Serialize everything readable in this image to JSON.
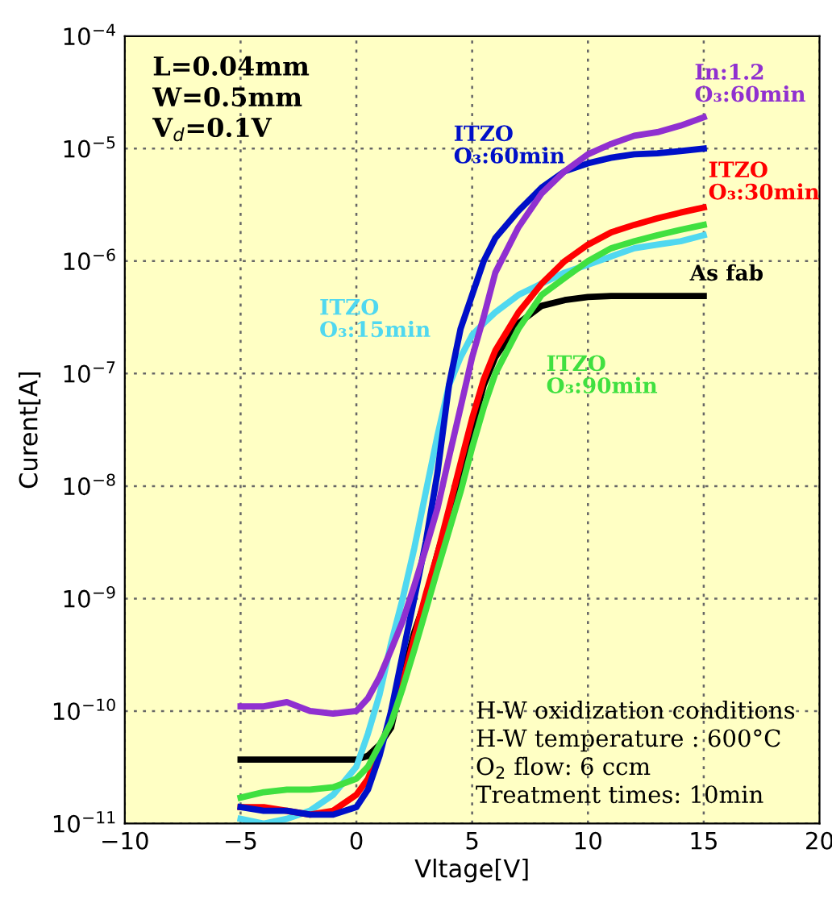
{
  "chart_data": {
    "type": "line",
    "xlabel": "Vltage[V]",
    "ylabel": "Curent[A]",
    "log": "y",
    "grid": true,
    "legend": false,
    "marker": "none",
    "line_style": "solid",
    "xlim": [
      -10,
      20
    ],
    "xticks": [
      {
        "value": -10,
        "label": "−10"
      },
      {
        "value": -5,
        "label": "−5"
      },
      0,
      5,
      10,
      15,
      20
    ],
    "ylim": [
      1e-11,
      0.0001
    ],
    "yticks": [
      {
        "value": 1e-11,
        "label": "10$^{−11}$"
      },
      {
        "value": 1e-10,
        "label": "10$^{−10}$"
      },
      {
        "value": 1e-09,
        "label": "10$^{−9}$"
      },
      {
        "value": 1e-08,
        "label": "10$^{−8}$"
      },
      {
        "value": 1e-07,
        "label": "10$^{−7}$"
      },
      {
        "value": 1e-06,
        "label": "10$^{−6}$"
      },
      {
        "value": 1e-05,
        "label": "10$^{−5}$"
      },
      {
        "value": 0.0001,
        "label": "10$^{−4}$"
      }
    ],
    "x": [
      -5,
      -4,
      -3,
      -2,
      -1,
      0,
      0.5,
      1,
      1.5,
      2,
      2.5,
      3,
      3.5,
      4,
      4.5,
      5,
      5.5,
      6,
      7,
      8,
      9,
      10,
      11,
      12,
      13,
      14,
      15
    ],
    "series": [
      {
        "name": "As fab",
        "color": "#000000",
        "values": [
          3.7e-11,
          3.7e-11,
          3.7e-11,
          3.7e-11,
          3.7e-11,
          3.7e-11,
          4e-11,
          5e-11,
          7.1e-11,
          2e-10,
          5e-10,
          1e-09,
          2.5e-09,
          5.6e-09,
          1.3e-08,
          3.2e-08,
          7.9e-08,
          1.4e-07,
          2.8e-07,
          4e-07,
          4.5e-07,
          4.8e-07,
          4.9e-07,
          4.9e-07,
          4.9e-07,
          4.9e-07,
          4.9e-07
        ]
      },
      {
        "name": "ITZO\nO₃:15min",
        "color": "#50d8f0",
        "values": [
          1.1e-11,
          1e-11,
          1.1e-11,
          1.3e-11,
          1.8e-11,
          3.2e-11,
          6.3e-11,
          1.4e-10,
          4e-10,
          1e-09,
          2.8e-09,
          8.9e-09,
          2.8e-08,
          7.9e-08,
          1.4e-07,
          2.2e-07,
          2.8e-07,
          3.5e-07,
          5e-07,
          6.3e-07,
          7.9e-07,
          9.3e-07,
          1.1e-06,
          1.3e-06,
          1.4e-06,
          1.5e-06,
          1.7e-06
        ]
      },
      {
        "name": "ITZO\nO₃:30min",
        "color": "#ff0000",
        "values": [
          1.4e-11,
          1.4e-11,
          1.3e-11,
          1.2e-11,
          1.3e-11,
          1.8e-11,
          2.5e-11,
          4.5e-11,
          8.9e-11,
          1.8e-10,
          4.5e-10,
          1.1e-09,
          2.5e-09,
          6.3e-09,
          1.6e-08,
          4e-08,
          8.9e-08,
          1.6e-07,
          3.5e-07,
          6.3e-07,
          1e-06,
          1.4e-06,
          1.8e-06,
          2.1e-06,
          2.4e-06,
          2.7e-06,
          3e-06
        ]
      },
      {
        "name": "ITZO\nO₃:60min",
        "color": "#0010c8",
        "values": [
          1.4e-11,
          1.3e-11,
          1.3e-11,
          1.2e-11,
          1.2e-11,
          1.4e-11,
          2e-11,
          4e-11,
          1e-10,
          3.2e-10,
          1e-09,
          3.2e-09,
          1.3e-08,
          7.9e-08,
          2.5e-07,
          5e-07,
          1e-06,
          1.6e-06,
          2.8e-06,
          4.5e-06,
          6.3e-06,
          7.4e-06,
          8.3e-06,
          8.9e-06,
          9.1e-06,
          9.5e-06,
          1e-05
        ]
      },
      {
        "name": "ITZO\nO₃:90min",
        "color": "#40e040",
        "values": [
          1.7e-11,
          1.9e-11,
          2e-11,
          2e-11,
          2.1e-11,
          2.5e-11,
          3.2e-11,
          5e-11,
          7.9e-11,
          1.6e-10,
          3.5e-10,
          7.9e-10,
          1.8e-09,
          4e-09,
          8.9e-09,
          2.2e-08,
          5e-08,
          1e-07,
          2.5e-07,
          5e-07,
          7.1e-07,
          1e-06,
          1.3e-06,
          1.5e-06,
          1.7e-06,
          1.9e-06,
          2.1e-06
        ]
      },
      {
        "name": "In:1.2\nO₃:60min",
        "color": "#9030d0",
        "values": [
          1.1e-10,
          1.1e-10,
          1.2e-10,
          1e-10,
          9.5e-11,
          1e-10,
          1.3e-10,
          2e-10,
          3.5e-10,
          6.3e-10,
          1.3e-09,
          2.8e-09,
          6.3e-09,
          1.8e-08,
          5e-08,
          1.4e-07,
          3.2e-07,
          7.9e-07,
          2e-06,
          4e-06,
          6.3e-06,
          8.9e-06,
          1.1e-05,
          1.3e-05,
          1.4e-05,
          1.6e-05,
          1.9e-05
        ]
      }
    ],
    "annotations": [
      "L=0.04mm\nW=0.5mm\nV$_{d}$=0.1V",
      "H-W oxidization conditions\nH-W temperature : 600°C\nO$_{2}$ flow: 6 ccm\nTreatment times: 10min"
    ]
  }
}
